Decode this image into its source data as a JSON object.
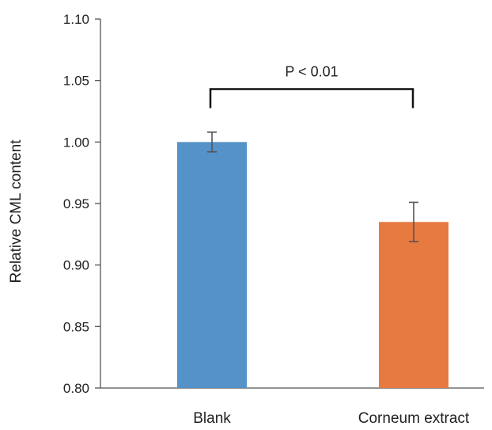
{
  "chart_data": {
    "type": "bar",
    "title": "",
    "xlabel": "",
    "ylabel": "Relative CML content",
    "categories": [
      "Blank",
      "Corneum extract"
    ],
    "values": [
      1.0,
      0.935
    ],
    "error_low": [
      0.992,
      0.919
    ],
    "error_high": [
      1.008,
      0.951
    ],
    "colors": [
      "#5592C8",
      "#E67A40"
    ],
    "ylim": [
      0.8,
      1.1
    ],
    "yticks": [
      0.8,
      0.85,
      0.9,
      0.95,
      1.0,
      1.05,
      1.1
    ],
    "ytick_labels": [
      "0.80",
      "0.85",
      "0.90",
      "0.95",
      "1.00",
      "1.05",
      "1.10"
    ],
    "grid": false,
    "annotation": {
      "text": "P < 0.01",
      "between": [
        "Blank",
        "Corneum extract"
      ],
      "bracket_y": 1.043
    }
  }
}
